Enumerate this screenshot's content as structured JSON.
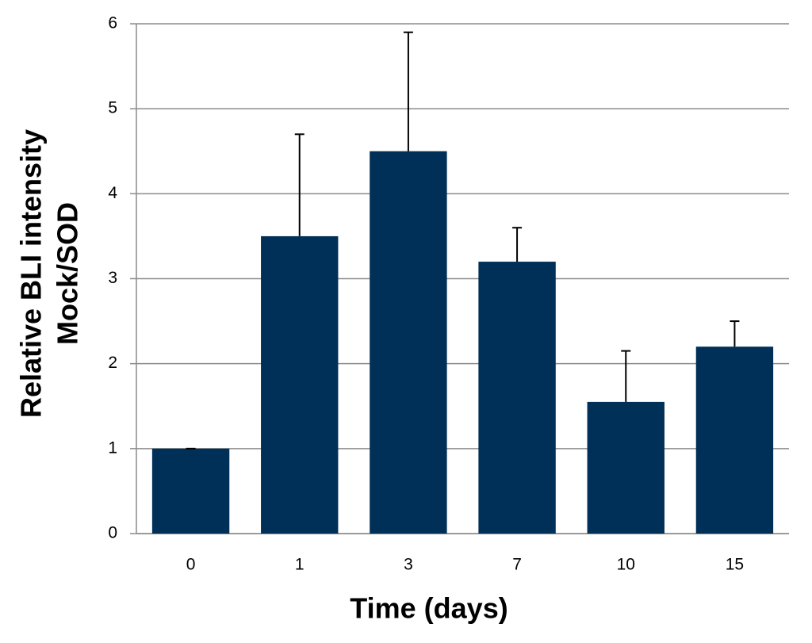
{
  "chart_data": {
    "type": "bar",
    "categories": [
      "0",
      "1",
      "3",
      "7",
      "10",
      "15"
    ],
    "values": [
      1.0,
      3.5,
      4.5,
      3.2,
      1.55,
      2.2
    ],
    "errors": [
      0,
      1.2,
      1.4,
      0.4,
      0.6,
      0.3
    ],
    "color": "#003057",
    "xlabel": "Time  (days)",
    "ylabel": [
      "Relative BLI intensity",
      "Mock/SOD"
    ],
    "ylim": [
      0,
      6
    ],
    "yticks": [
      0,
      1,
      2,
      3,
      4,
      5,
      6
    ],
    "grid": true
  }
}
